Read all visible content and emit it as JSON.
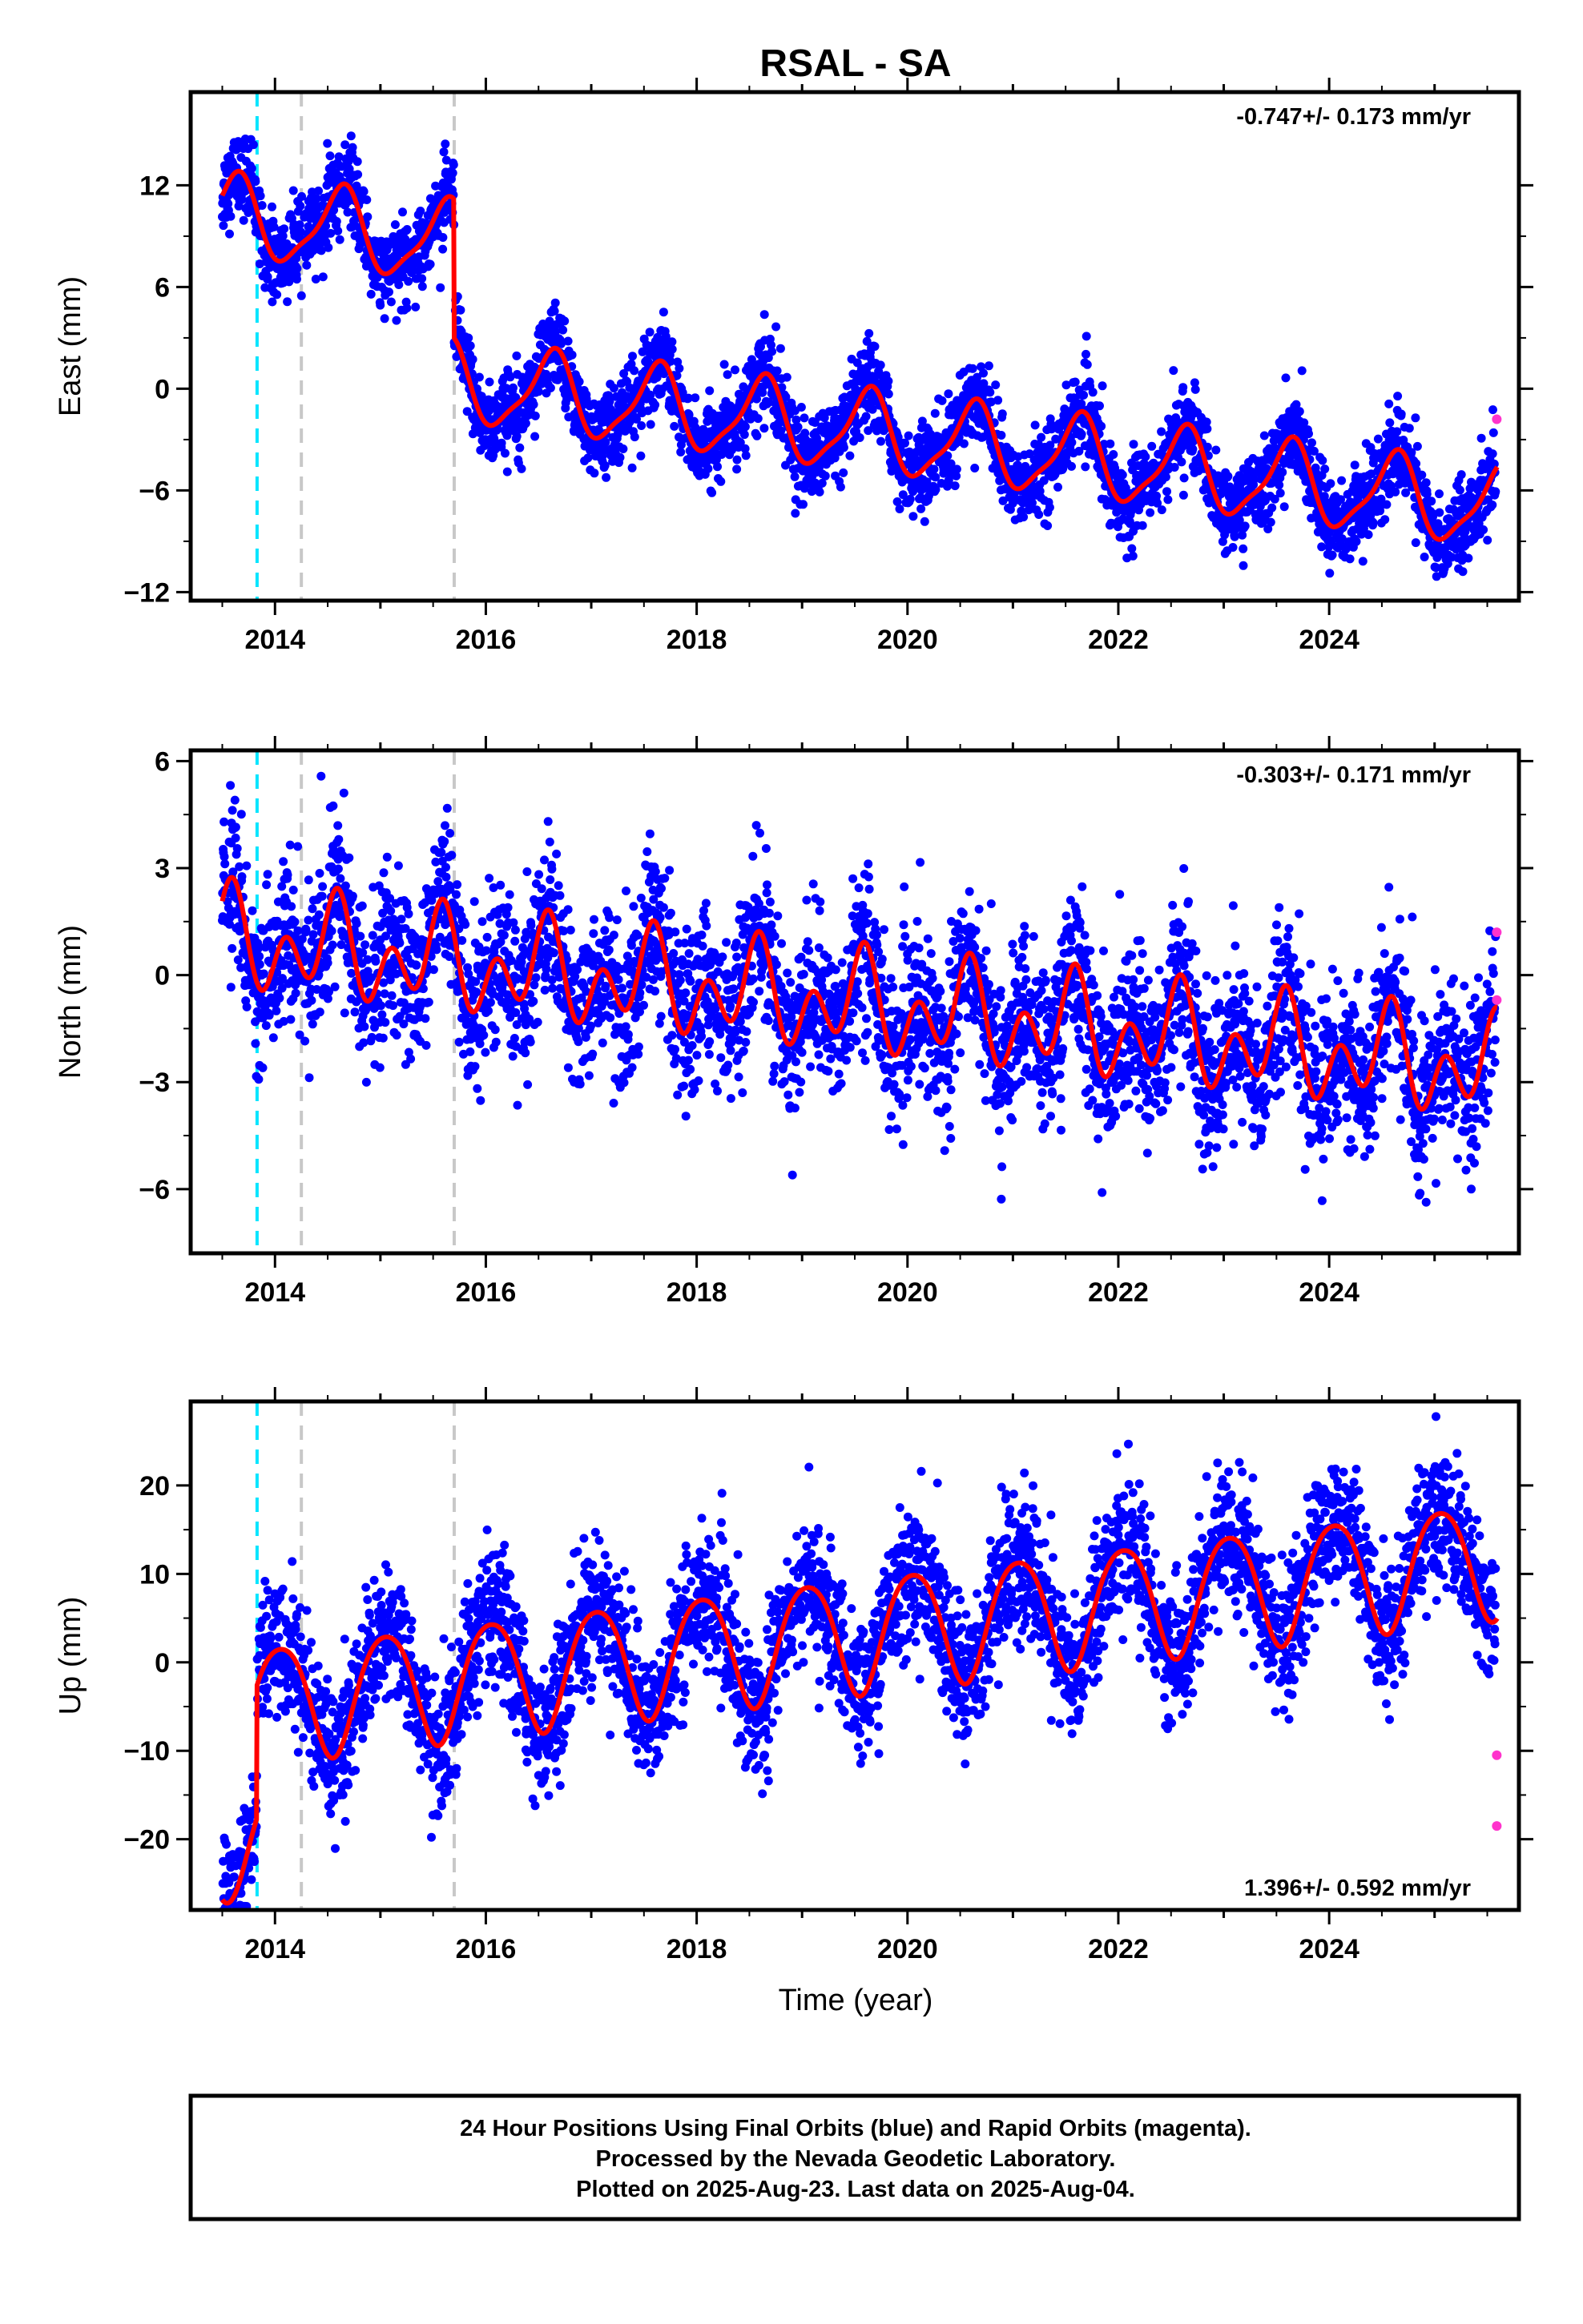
{
  "title": "RSAL - SA",
  "xlabel": "Time (year)",
  "footer": {
    "line1": "24 Hour Positions Using Final Orbits (blue) and Rapid Orbits (magenta).",
    "line2": "Processed by the Nevada Geodetic Laboratory.",
    "line3": "Plotted on 2025-Aug-23. Last data on 2025-Aug-04."
  },
  "colors": {
    "final_orbits": "#0000ff",
    "rapid_orbits": "#ff33cc",
    "model_fit": "#ff0000",
    "equipment_change": "#00e5ff",
    "other_event": "#c8c8c8"
  },
  "chart_data": [
    {
      "type": "scatter",
      "name": "east",
      "ylabel": "East (mm)",
      "rate": "-0.747+/- 0.173 mm/yr",
      "rate_position": "top-right",
      "xlim": [
        2013.2,
        2025.8
      ],
      "ylim": [
        -12.5,
        17.5
      ],
      "x_ticks": [
        "2014",
        "2016",
        "2018",
        "2020",
        "2022",
        "2024"
      ],
      "y_ticks": [
        -12,
        -6,
        0,
        6,
        12
      ],
      "grid": false,
      "event_lines": [
        {
          "x": 2013.83,
          "kind": "equipment_change"
        },
        {
          "x": 2014.25,
          "kind": "other_event"
        },
        {
          "x": 2015.7,
          "kind": "other_event"
        }
      ],
      "model": {
        "segments": [
          {
            "x0": 2013.5,
            "x1": 2013.83,
            "offset": 10.2
          },
          {
            "x0": 2013.83,
            "x1": 2015.7,
            "offset": 10.2
          },
          {
            "x0": 2015.7,
            "x1": 2025.6,
            "offset": 2.0
          }
        ],
        "trend_mm_per_yr": -0.747,
        "annual_amp": 2.3,
        "annual_peak": 0.62,
        "semiannual_amp": 0.6,
        "semiannual_peak": 0.2
      },
      "scatter": {
        "start": 2013.5,
        "end": 2025.58,
        "step": 0.00274,
        "noise": 1.2
      },
      "rapid_points": [
        {
          "x": 2025.59,
          "y": -1.8
        }
      ]
    },
    {
      "type": "scatter",
      "name": "north",
      "ylabel": "North (mm)",
      "rate": "-0.303+/- 0.171 mm/yr",
      "rate_position": "top-right",
      "xlim": [
        2013.2,
        2025.8
      ],
      "ylim": [
        -7.8,
        6.3
      ],
      "x_ticks": [
        "2014",
        "2016",
        "2018",
        "2020",
        "2022",
        "2024"
      ],
      "y_ticks": [
        -6,
        -3,
        0,
        3,
        6
      ],
      "grid": false,
      "event_lines": [
        {
          "x": 2013.83,
          "kind": "equipment_change"
        },
        {
          "x": 2014.25,
          "kind": "other_event"
        },
        {
          "x": 2015.7,
          "kind": "other_event"
        }
      ],
      "model": {
        "segments": [
          {
            "x0": 2013.5,
            "x1": 2025.6,
            "offset": 1.0
          }
        ],
        "trend_mm_per_yr": -0.303,
        "annual_amp": 0.8,
        "annual_peak": 0.55,
        "semiannual_amp": 1.0,
        "semiannual_peak": 0.1
      },
      "scatter": {
        "start": 2013.5,
        "end": 2025.58,
        "step": 0.00274,
        "noise": 1.1
      },
      "rapid_points": [
        {
          "x": 2025.59,
          "y": 1.2
        },
        {
          "x": 2025.59,
          "y": -0.7
        }
      ]
    },
    {
      "type": "scatter",
      "name": "up",
      "ylabel": "Up (mm)",
      "rate": "1.396+/- 0.592 mm/yr",
      "rate_position": "bottom-right",
      "xlim": [
        2013.2,
        2025.8
      ],
      "ylim": [
        -28,
        29.5
      ],
      "x_ticks": [
        "2014",
        "2016",
        "2018",
        "2020",
        "2022",
        "2024"
      ],
      "y_ticks": [
        -20,
        -10,
        0,
        10,
        20
      ],
      "grid": false,
      "event_lines": [
        {
          "x": 2013.83,
          "kind": "equipment_change"
        },
        {
          "x": 2014.25,
          "kind": "other_event"
        },
        {
          "x": 2015.7,
          "kind": "other_event"
        }
      ],
      "model": {
        "segments": [
          {
            "x0": 2013.5,
            "x1": 2013.83,
            "offset": -20.0
          },
          {
            "x0": 2013.83,
            "x1": 2025.6,
            "offset": -5.0
          }
        ],
        "trend_mm_per_yr": 1.396,
        "annual_amp": 6.5,
        "annual_peak": 0.05,
        "semiannual_amp": 0.8,
        "semiannual_peak": 0.3
      },
      "scatter": {
        "start": 2013.5,
        "end": 2025.58,
        "step": 0.00274,
        "noise": 3.8
      },
      "rapid_points": [
        {
          "x": 2025.59,
          "y": -10.5
        },
        {
          "x": 2025.59,
          "y": -18.5
        }
      ]
    }
  ]
}
